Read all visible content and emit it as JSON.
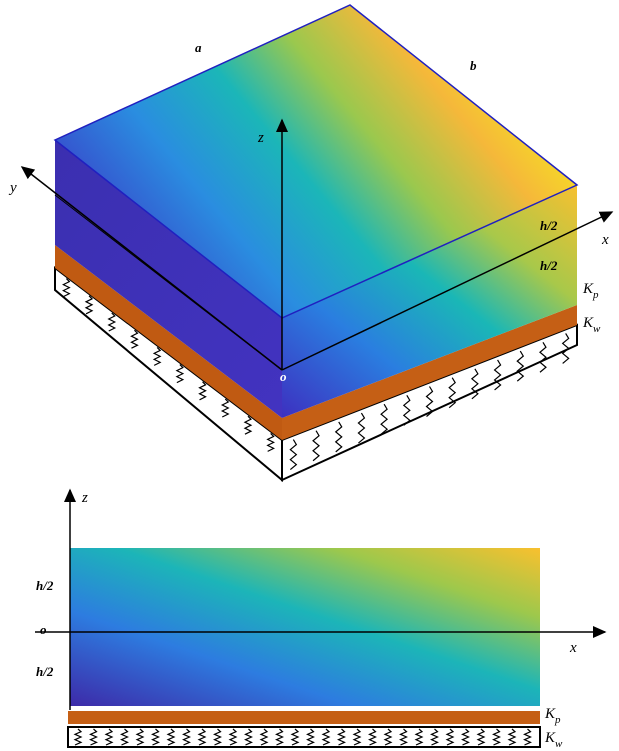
{
  "top_view": {
    "labels": {
      "a": "a",
      "b": "b",
      "z": "z",
      "y": "y",
      "x": "x",
      "h_upper": "h/2",
      "h_lower": "h/2",
      "origin": "o"
    },
    "kp": {
      "base": "K",
      "sub": "p"
    },
    "kw": {
      "base": "K",
      "sub": "w"
    }
  },
  "side_view": {
    "labels": {
      "z": "z",
      "x": "x",
      "h_upper": "h/2",
      "h_lower": "h/2",
      "origin": "o"
    },
    "kp": {
      "base": "K",
      "sub": "p"
    },
    "kw": {
      "base": "K",
      "sub": "w"
    }
  }
}
